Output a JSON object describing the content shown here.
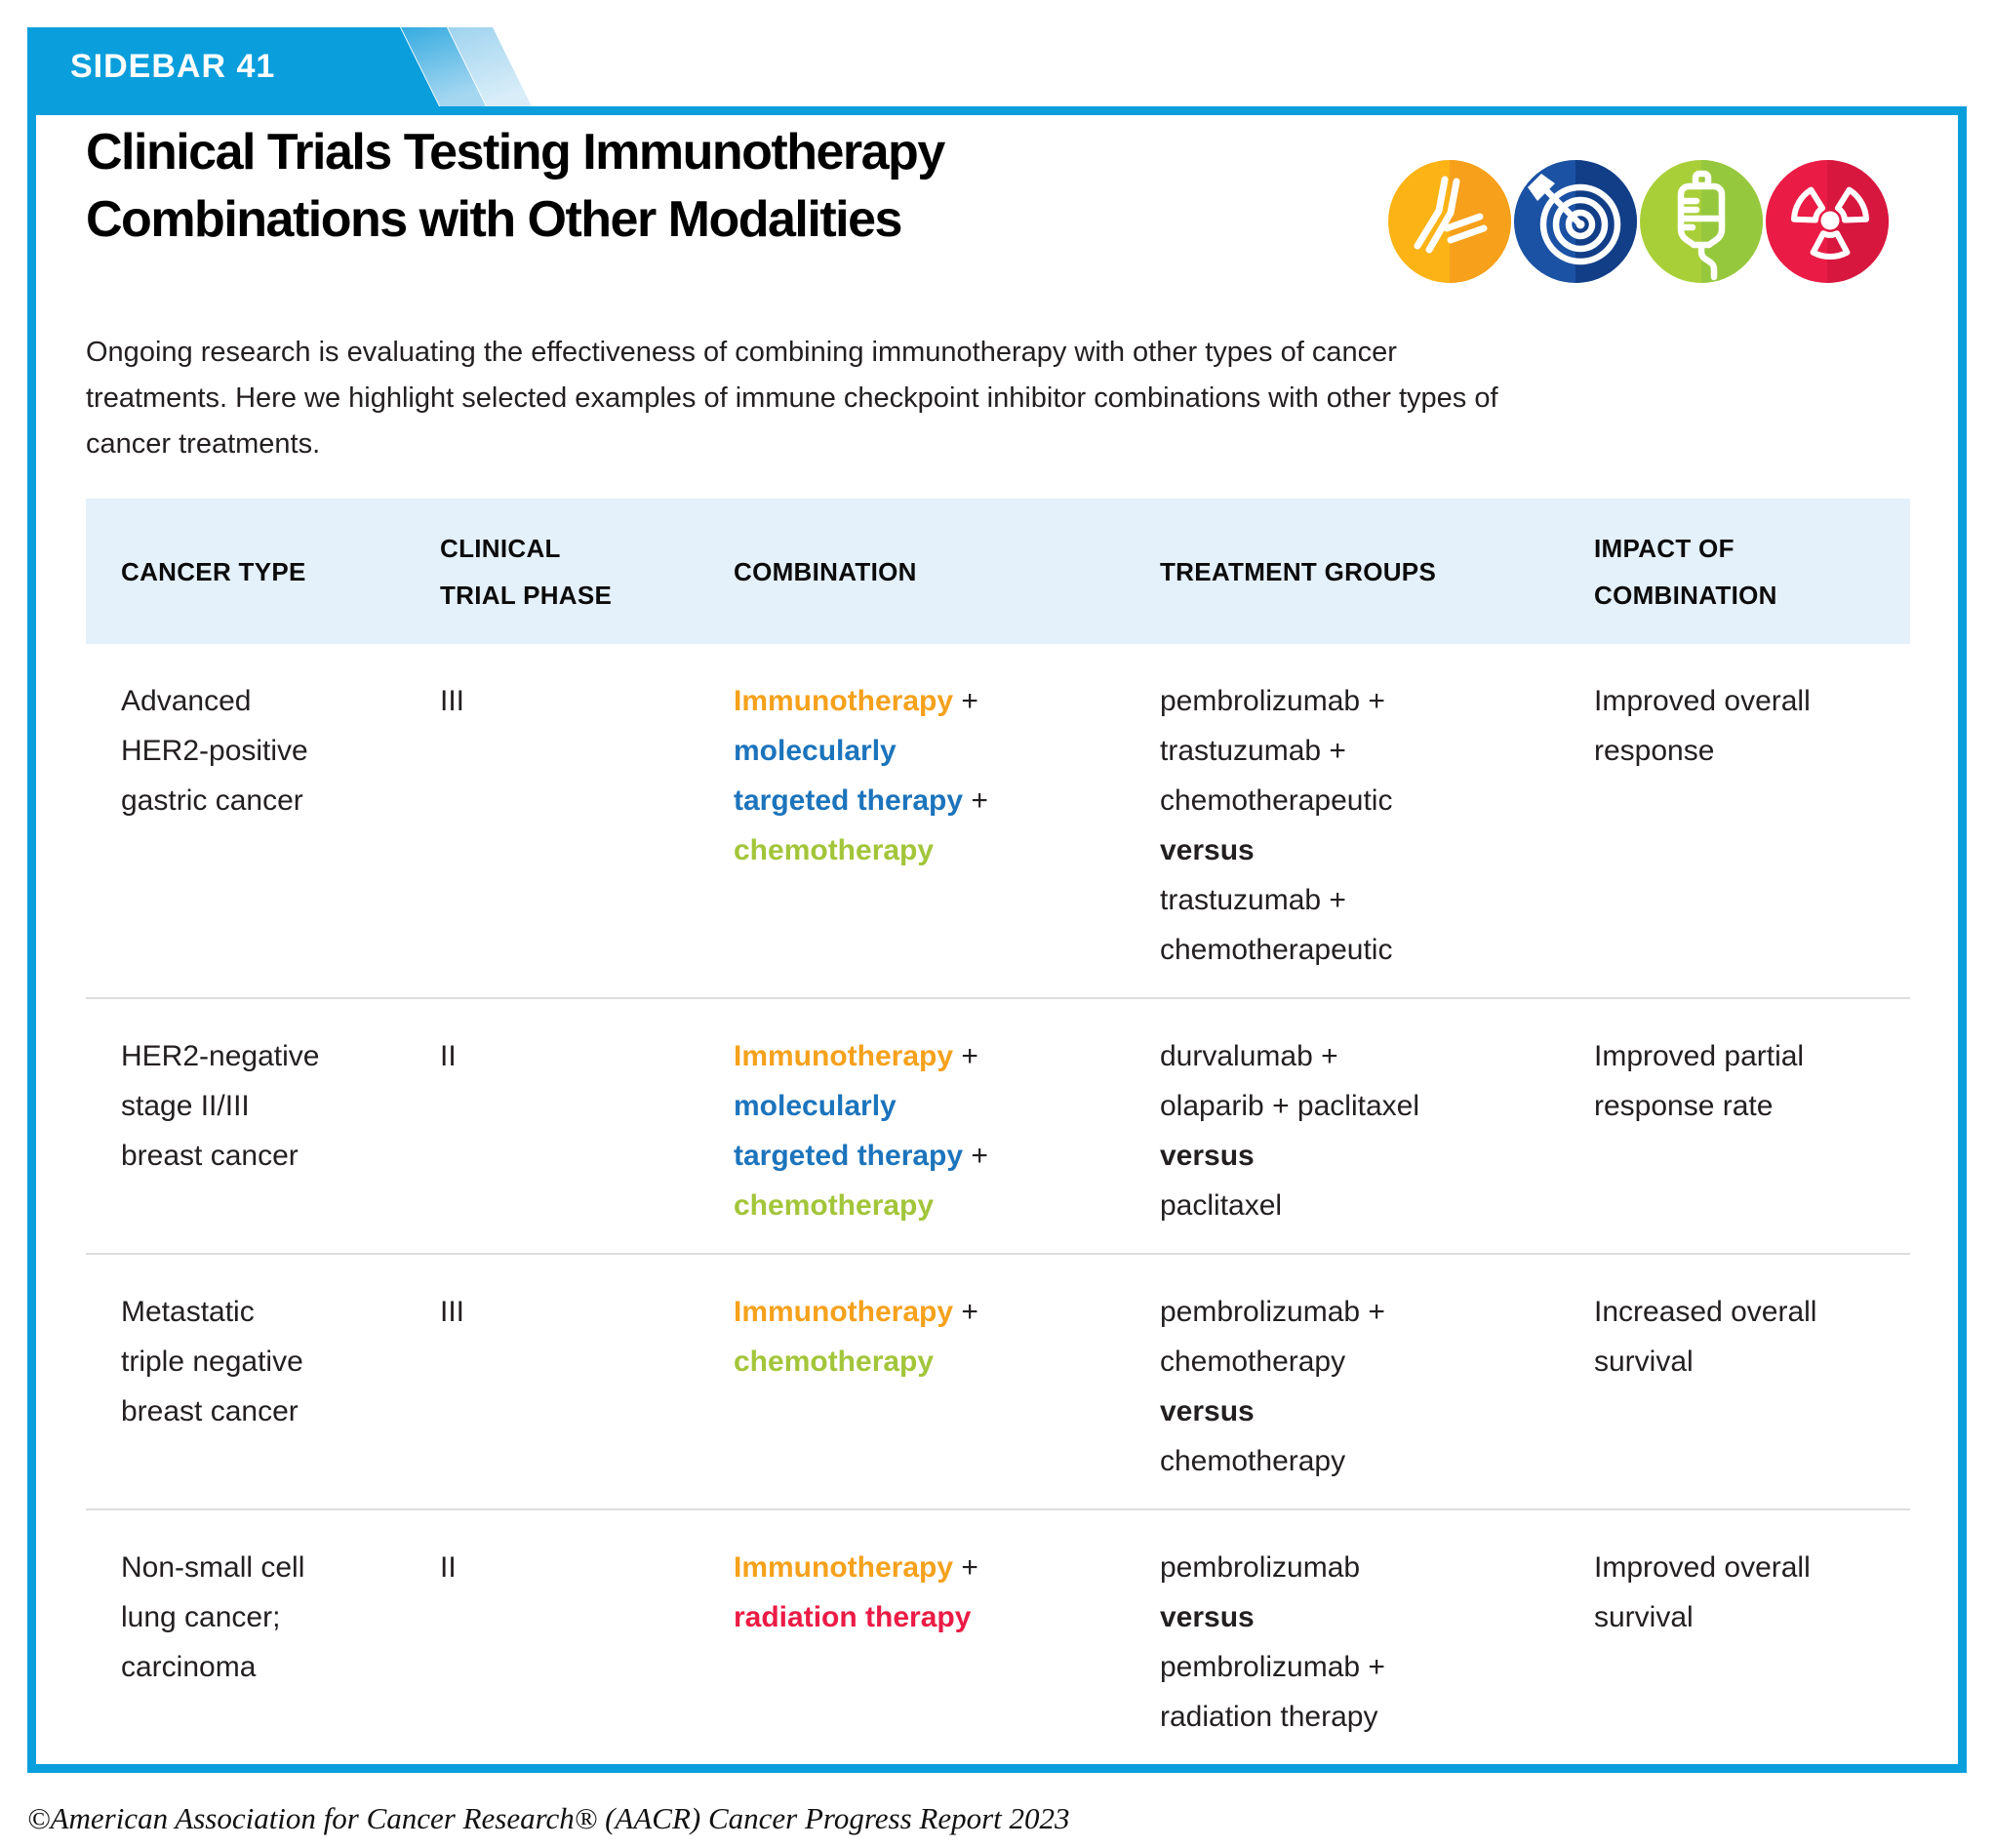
{
  "tab": {
    "label": "SIDEBAR 41"
  },
  "header": {
    "title": "Clinical Trials Testing Immunotherapy\nCombinations with Other Modalities",
    "intro": "Ongoing research is evaluating the effectiveness of combining immunotherapy with other types of cancer\ntreatments. Here we highlight selected examples of immune checkpoint inhibitor combinations with other types of\ncancer treatments.",
    "icons": [
      {
        "name": "immunotherapy-icon",
        "depicts": "antibody",
        "circle_left": "#FBB316",
        "circle_right": "#F7A01B"
      },
      {
        "name": "targeted-therapy-icon",
        "depicts": "target-with-arrow",
        "circle_left": "#1B52A4",
        "circle_right": "#123E88"
      },
      {
        "name": "chemotherapy-icon",
        "depicts": "iv-bag",
        "circle_left": "#A9CF38",
        "circle_right": "#96C83E"
      },
      {
        "name": "radiation-therapy-icon",
        "depicts": "radiation-trefoil",
        "circle_left": "#EA1C45",
        "circle_right": "#D8173F"
      }
    ]
  },
  "palette": {
    "brand_blue": "#0A9EDC",
    "table_header_bg": "#E4F0FA",
    "body_text": "#231F20",
    "divider": "#DDDDDD",
    "immunotherapy": "#F5A11C",
    "targeted_therapy": "#1C74BC",
    "chemotherapy": "#A3C53A",
    "radiation_therapy": "#EB1B45"
  },
  "table": {
    "columns": [
      "CANCER TYPE",
      "CLINICAL\nTRIAL PHASE",
      "COMBINATION",
      "TREATMENT GROUPS",
      "IMPACT OF\nCOMBINATION"
    ],
    "rows": [
      {
        "cancer_type": "Advanced\nHER2-positive\ngastric cancer",
        "phase": "III",
        "combination": [
          [
            {
              "t": "Immunotherapy",
              "c": "immunotherapy"
            },
            {
              "t": " +"
            }
          ],
          [
            {
              "t": "molecularly",
              "c": "targeted_therapy"
            }
          ],
          [
            {
              "t": "targeted therapy",
              "c": "targeted_therapy"
            },
            {
              "t": " +"
            }
          ],
          [
            {
              "t": "chemotherapy",
              "c": "chemotherapy"
            }
          ]
        ],
        "treatment_groups": [
          {
            "t": "pembrolizumab +"
          },
          {
            "t": "trastuzumab +"
          },
          {
            "t": "chemotherapeutic"
          },
          {
            "t": "versus",
            "b": true
          },
          {
            "t": "trastuzumab +"
          },
          {
            "t": "chemotherapeutic"
          }
        ],
        "impact": "Improved overall\nresponse"
      },
      {
        "cancer_type": "HER2-negative\nstage II/III\nbreast cancer",
        "phase": "II",
        "combination": [
          [
            {
              "t": "Immunotherapy",
              "c": "immunotherapy"
            },
            {
              "t": " +"
            }
          ],
          [
            {
              "t": "molecularly",
              "c": "targeted_therapy"
            }
          ],
          [
            {
              "t": "targeted therapy",
              "c": "targeted_therapy"
            },
            {
              "t": " +"
            }
          ],
          [
            {
              "t": "chemotherapy",
              "c": "chemotherapy"
            }
          ]
        ],
        "treatment_groups": [
          {
            "t": "durvalumab +"
          },
          {
            "t": "olaparib + paclitaxel"
          },
          {
            "t": "versus",
            "b": true
          },
          {
            "t": "paclitaxel"
          }
        ],
        "impact": "Improved partial\nresponse rate"
      },
      {
        "cancer_type": "Metastatic\ntriple negative\nbreast cancer",
        "phase": "III",
        "combination": [
          [
            {
              "t": "Immunotherapy",
              "c": "immunotherapy"
            },
            {
              "t": " +"
            }
          ],
          [
            {
              "t": "chemotherapy",
              "c": "chemotherapy"
            }
          ]
        ],
        "treatment_groups": [
          {
            "t": "pembrolizumab +"
          },
          {
            "t": "chemotherapy"
          },
          {
            "t": "versus",
            "b": true
          },
          {
            "t": "chemotherapy"
          }
        ],
        "impact": "Increased overall\nsurvival"
      },
      {
        "cancer_type": "Non-small cell\nlung cancer;\ncarcinoma",
        "phase": "II",
        "combination": [
          [
            {
              "t": "Immunotherapy",
              "c": "immunotherapy"
            },
            {
              "t": " +"
            }
          ],
          [
            {
              "t": "radiation therapy",
              "c": "radiation_therapy"
            }
          ]
        ],
        "treatment_groups": [
          {
            "t": "pembrolizumab"
          },
          {
            "t": "versus",
            "b": true
          },
          {
            "t": "pembrolizumab +"
          },
          {
            "t": "radiation therapy"
          }
        ],
        "impact": "Improved overall\nsurvival"
      }
    ]
  },
  "footer": {
    "credit": "©American Association for Cancer Research® (AACR) Cancer Progress Report 2023"
  }
}
